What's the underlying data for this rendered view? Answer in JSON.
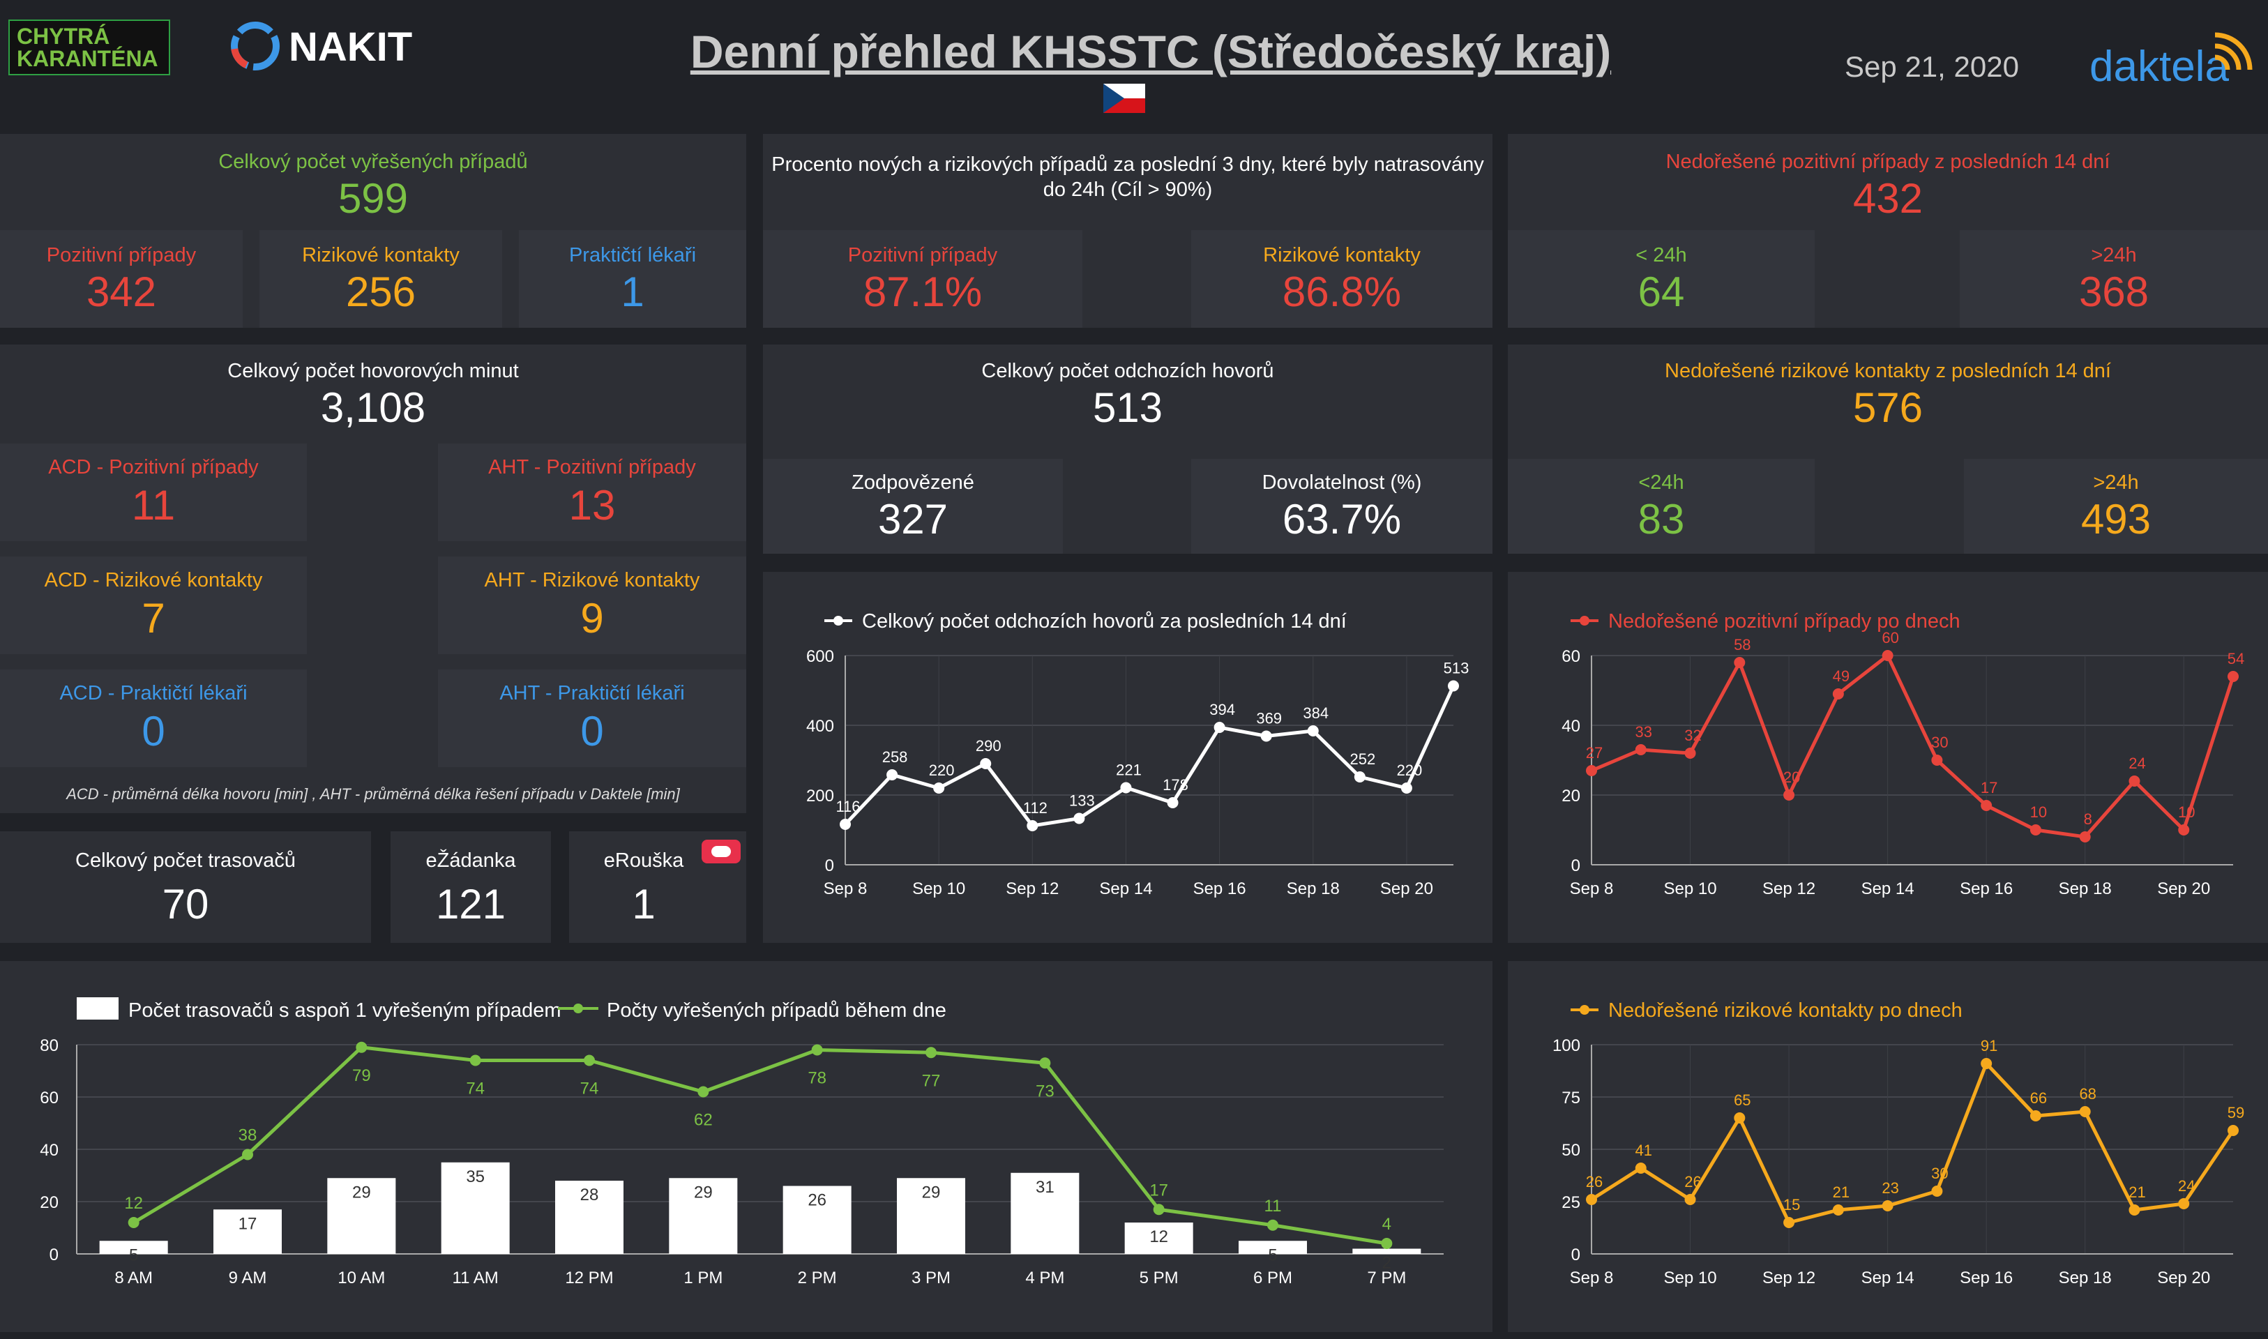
{
  "header": {
    "badge_line1": "CHYTRÁ",
    "badge_line2": "KARANTÉNA",
    "nakit_logo": "NAKIT",
    "title": "Denní přehled KHSSTC (Středočeský kraj)",
    "date": "Sep 21, 2020",
    "brand": "daktela",
    "flag_icon": "czech-flag-icon"
  },
  "colors": {
    "green": "#7cc245",
    "red": "#e8453c",
    "orange": "#f6a91d",
    "blue": "#3d98e8",
    "panel": "#2d2f35",
    "background": "#202227"
  },
  "resolved": {
    "title": "Celkový počet vyřešených případů",
    "value": "599",
    "positive_label": "Pozitivní případy",
    "positive_value": "342",
    "risk_label": "Rizikové kontakty",
    "risk_value": "256",
    "doctors_label": "Praktičtí lékaři",
    "doctors_value": "1"
  },
  "traced_percent": {
    "title_line1": "Procento nových a rizikových případů za poslední 3 dny, které byly natrasovány",
    "title_line2": "do 24h (Cíl > 90%)",
    "positive_label": "Pozitivní případy",
    "positive_value": "87.1%",
    "risk_label": "Rizikové kontakty",
    "risk_value": "86.8%"
  },
  "unresolved_positive": {
    "title": "Nedořešené pozitivní případy z posledních 14 dní",
    "value": "432",
    "lt_label": "< 24h",
    "lt_value": "64",
    "gt_label": ">24h",
    "gt_value": "368"
  },
  "minutes": {
    "title": "Celkový počet hovorových minut",
    "value": "3,108",
    "acd_pos_label": "ACD - Pozitivní případy",
    "acd_pos_value": "11",
    "aht_pos_label": "AHT - Pozitivní případy",
    "aht_pos_value": "13",
    "acd_risk_label": "ACD - Rizikové kontakty",
    "acd_risk_value": "7",
    "aht_risk_label": "AHT - Rizikové kontakty",
    "aht_risk_value": "9",
    "acd_doc_label": "ACD - Praktičtí lékaři",
    "acd_doc_value": "0",
    "aht_doc_label": "AHT - Praktičtí lékaři",
    "aht_doc_value": "0",
    "footnote": "ACD - průměrná délka hovoru [min] , AHT - průměrná délka řešení případu v Daktele [min]"
  },
  "outgoing": {
    "title": "Celkový počet odchozích hovorů",
    "value": "513",
    "answered_label": "Zodpovězené",
    "answered_value": "327",
    "reach_label": "Dovolatelnost (%)",
    "reach_value": "63.7%"
  },
  "unresolved_risk": {
    "title": "Nedořešené rizikové kontakty z posledních 14 dní",
    "value": "576",
    "lt_label": "<24h",
    "lt_value": "83",
    "gt_label": ">24h",
    "gt_value": "493"
  },
  "tracers": {
    "title": "Celkový počet trasovačů",
    "value": "70",
    "ezadanka_label": "eŽádanka",
    "ezadanka_value": "121",
    "erouska_label": "eRouška",
    "erouska_value": "1",
    "erouska_icon": "face-mask-icon"
  },
  "chart_data": [
    {
      "type": "line",
      "title": "Celkový počet odchozích hovorů za posledních 14 dní",
      "x": [
        "Sep 8",
        "Sep 9",
        "Sep 10",
        "Sep 11",
        "Sep 12",
        "Sep 13",
        "Sep 14",
        "Sep 15",
        "Sep 16",
        "Sep 17",
        "Sep 18",
        "Sep 19",
        "Sep 20",
        "Sep 21"
      ],
      "x_tick_labels": [
        "Sep 8",
        "Sep 10",
        "Sep 12",
        "Sep 14",
        "Sep 16",
        "Sep 18",
        "Sep 20"
      ],
      "series": [
        {
          "name": "Celkový počet odchozích hovorů za posledních 14 dní",
          "color": "#ffffff",
          "values": [
            116,
            258,
            220,
            290,
            112,
            133,
            221,
            178,
            394,
            369,
            384,
            252,
            220,
            513
          ]
        }
      ],
      "ylim": [
        0,
        600
      ],
      "yticks": [
        0,
        200,
        400,
        600
      ],
      "grid": true,
      "legend": "top-left"
    },
    {
      "type": "line",
      "title": "Nedořešené pozitivní případy po dnech",
      "x": [
        "Sep 8",
        "Sep 9",
        "Sep 10",
        "Sep 11",
        "Sep 12",
        "Sep 13",
        "Sep 14",
        "Sep 15",
        "Sep 16",
        "Sep 17",
        "Sep 18",
        "Sep 19",
        "Sep 20",
        "Sep 21"
      ],
      "x_tick_labels": [
        "Sep 8",
        "Sep 10",
        "Sep 12",
        "Sep 14",
        "Sep 16",
        "Sep 18",
        "Sep 20"
      ],
      "series": [
        {
          "name": "Nedořešené pozitivní případy po dnech",
          "color": "#e8453c",
          "values": [
            27,
            33,
            32,
            58,
            20,
            49,
            60,
            30,
            17,
            10,
            8,
            24,
            10,
            54
          ]
        }
      ],
      "ylim": [
        0,
        60
      ],
      "yticks": [
        0,
        20,
        40,
        60
      ],
      "grid": true,
      "legend": "top-left"
    },
    {
      "type": "bar",
      "categories": [
        "8 AM",
        "9 AM",
        "10 AM",
        "11 AM",
        "12 PM",
        "1 PM",
        "2 PM",
        "3 PM",
        "4 PM",
        "5 PM",
        "6 PM",
        "7 PM"
      ],
      "series": [
        {
          "name": "Počet trasovačů s aspoň 1 vyřešeným případem",
          "type": "bar",
          "color": "#ffffff",
          "values": [
            5,
            17,
            29,
            35,
            28,
            29,
            26,
            29,
            31,
            12,
            5,
            2
          ]
        },
        {
          "name": "Počty vyřešených případů během dne",
          "type": "line",
          "color": "#7cc245",
          "values": [
            12,
            38,
            79,
            74,
            74,
            62,
            78,
            77,
            73,
            17,
            11,
            4
          ]
        }
      ],
      "ylim": [
        0,
        80
      ],
      "yticks": [
        0,
        20,
        40,
        60,
        80
      ],
      "grid": true,
      "legend": "top-left"
    },
    {
      "type": "line",
      "title": "Nedořešené rizikové kontakty po dnech",
      "x": [
        "Sep 8",
        "Sep 9",
        "Sep 10",
        "Sep 11",
        "Sep 12",
        "Sep 13",
        "Sep 14",
        "Sep 15",
        "Sep 16",
        "Sep 17",
        "Sep 18",
        "Sep 19",
        "Sep 20",
        "Sep 21"
      ],
      "x_tick_labels": [
        "Sep 8",
        "Sep 10",
        "Sep 12",
        "Sep 14",
        "Sep 16",
        "Sep 18",
        "Sep 20"
      ],
      "series": [
        {
          "name": "Nedořešené rizikové kontakty po dnech",
          "color": "#f6a91d",
          "values": [
            26,
            41,
            26,
            65,
            15,
            21,
            23,
            30,
            91,
            66,
            68,
            21,
            24,
            59
          ]
        }
      ],
      "ylim": [
        0,
        100
      ],
      "yticks": [
        0,
        25,
        50,
        75,
        100
      ],
      "grid": true,
      "legend": "top-left"
    }
  ]
}
